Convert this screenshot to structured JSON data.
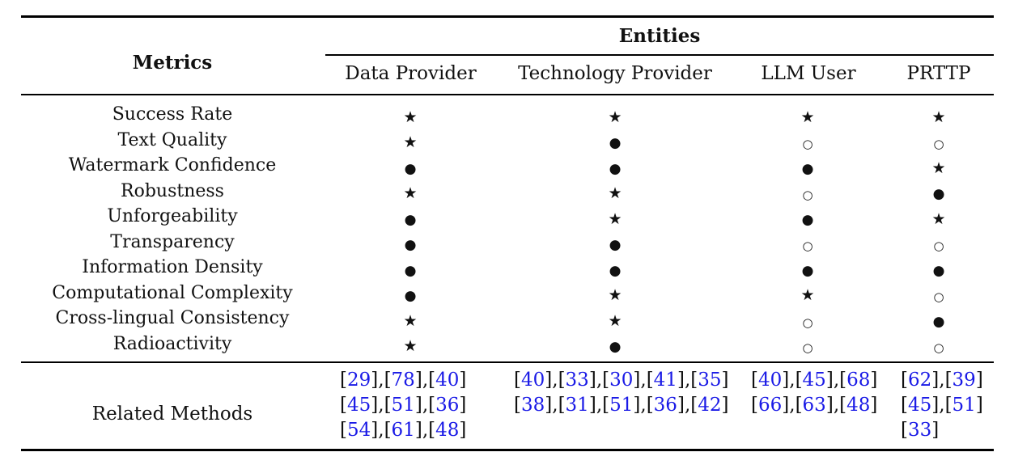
{
  "table": {
    "metrics_header": "Metrics",
    "group_header": "Entities",
    "columns": [
      "Data Provider",
      "Technology Provider",
      "LLM User",
      "PRTTP"
    ],
    "rows": [
      {
        "metric": "Success Rate",
        "values": [
          "star",
          "star",
          "star",
          "star"
        ]
      },
      {
        "metric": "Text Quality",
        "values": [
          "star",
          "filled",
          "open",
          "open"
        ]
      },
      {
        "metric": "Watermark Confidence",
        "values": [
          "filled",
          "filled",
          "filled",
          "star"
        ]
      },
      {
        "metric": "Robustness",
        "values": [
          "star",
          "star",
          "open",
          "filled"
        ]
      },
      {
        "metric": "Unforgeability",
        "values": [
          "filled",
          "star",
          "filled",
          "star"
        ]
      },
      {
        "metric": "Transparency",
        "values": [
          "filled",
          "filled",
          "open",
          "open"
        ]
      },
      {
        "metric": "Information Density",
        "values": [
          "filled",
          "filled",
          "filled",
          "filled"
        ]
      },
      {
        "metric": "Computational Complexity",
        "values": [
          "filled",
          "star",
          "star",
          "open"
        ]
      },
      {
        "metric": "Cross-lingual Consistency",
        "values": [
          "star",
          "star",
          "open",
          "filled"
        ]
      },
      {
        "metric": "Radioactivity",
        "values": [
          "star",
          "filled",
          "open",
          "open"
        ]
      }
    ],
    "symbols": {
      "star": "★",
      "filled": "●",
      "open": "○"
    },
    "related_label": "Related Methods",
    "related": [
      [
        [
          "29",
          "78",
          "40"
        ],
        [
          "45",
          "51",
          "36"
        ],
        [
          "54",
          "61",
          "48"
        ]
      ],
      [
        [
          "40",
          "33",
          "30",
          "41",
          "35"
        ],
        [
          "38",
          "31",
          "51",
          "36",
          "42"
        ]
      ],
      [
        [
          "40",
          "45",
          "68"
        ],
        [
          "66",
          "63",
          "48"
        ]
      ],
      [
        [
          "62",
          "39"
        ],
        [
          "45",
          "51"
        ],
        [
          "33"
        ]
      ]
    ],
    "colors": {
      "text": "#111111",
      "link": "#1a1ae6",
      "rule": "#000000"
    }
  }
}
